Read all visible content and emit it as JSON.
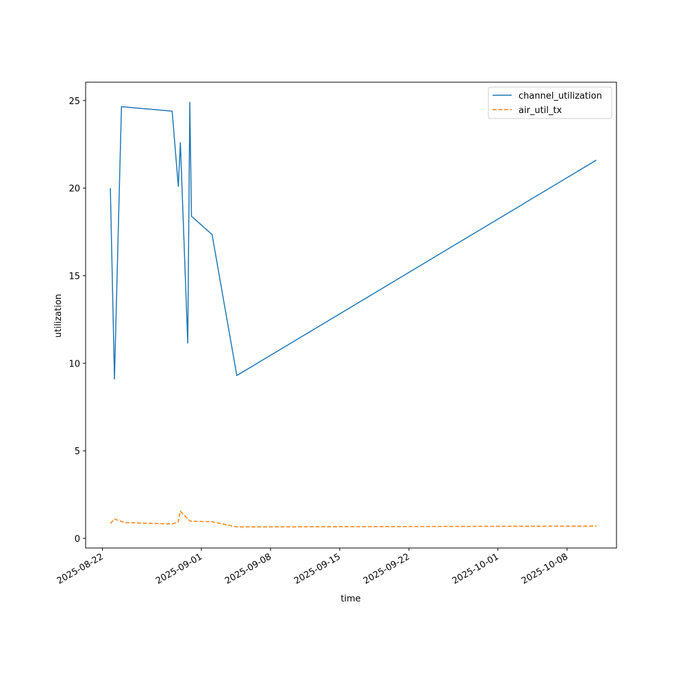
{
  "chart_data": {
    "type": "line",
    "title": "",
    "xlabel": "time",
    "ylabel": "utilization",
    "x_type": "datetime",
    "xlim": [
      "2025-08-20T07:00",
      "2025-10-13T00:00"
    ],
    "ylim": [
      -0.55,
      26.05
    ],
    "x_ticks": [
      {
        "date": "2025-08-22",
        "label": "2025-08-22"
      },
      {
        "date": "2025-09-01",
        "label": "2025-09-01"
      },
      {
        "date": "2025-09-08",
        "label": "2025-09-08"
      },
      {
        "date": "2025-09-15",
        "label": "2025-09-15"
      },
      {
        "date": "2025-09-22",
        "label": "2025-09-22"
      },
      {
        "date": "2025-10-01",
        "label": "2025-10-01"
      },
      {
        "date": "2025-10-08",
        "label": "2025-10-08"
      }
    ],
    "y_ticks": [
      0,
      5,
      10,
      15,
      20,
      25
    ],
    "grid": false,
    "legend_position": "top-right",
    "series": [
      {
        "name": "channel_utilization",
        "color": "#1f77b4",
        "dash": "solid",
        "points": [
          {
            "x": "2025-08-22T19:00",
            "y": 20.0
          },
          {
            "x": "2025-08-23T05:00",
            "y": 9.1
          },
          {
            "x": "2025-08-23T22:00",
            "y": 24.65
          },
          {
            "x": "2025-08-29T01:00",
            "y": 24.4
          },
          {
            "x": "2025-08-29T16:00",
            "y": 20.1
          },
          {
            "x": "2025-08-29T21:00",
            "y": 22.6
          },
          {
            "x": "2025-08-30T15:00",
            "y": 11.15
          },
          {
            "x": "2025-08-30T20:00",
            "y": 24.9
          },
          {
            "x": "2025-08-31T00:00",
            "y": 18.4
          },
          {
            "x": "2025-09-02T02:00",
            "y": 17.35
          },
          {
            "x": "2025-09-04T14:00",
            "y": 9.3
          },
          {
            "x": "2025-10-10T23:00",
            "y": 21.6
          }
        ]
      },
      {
        "name": "air_util_tx",
        "color": "#ff7f0e",
        "dash": "dashed",
        "points": [
          {
            "x": "2025-08-22T19:00",
            "y": 0.85
          },
          {
            "x": "2025-08-23T05:00",
            "y": 1.1
          },
          {
            "x": "2025-08-24T07:00",
            "y": 0.9
          },
          {
            "x": "2025-08-29T01:00",
            "y": 0.82
          },
          {
            "x": "2025-08-29T16:00",
            "y": 0.95
          },
          {
            "x": "2025-08-29T21:00",
            "y": 1.55
          },
          {
            "x": "2025-08-30T20:00",
            "y": 1.0
          },
          {
            "x": "2025-08-31T00:00",
            "y": 0.98
          },
          {
            "x": "2025-09-02T02:00",
            "y": 0.95
          },
          {
            "x": "2025-09-04T14:00",
            "y": 0.65
          },
          {
            "x": "2025-10-10T23:00",
            "y": 0.7
          }
        ]
      }
    ]
  }
}
